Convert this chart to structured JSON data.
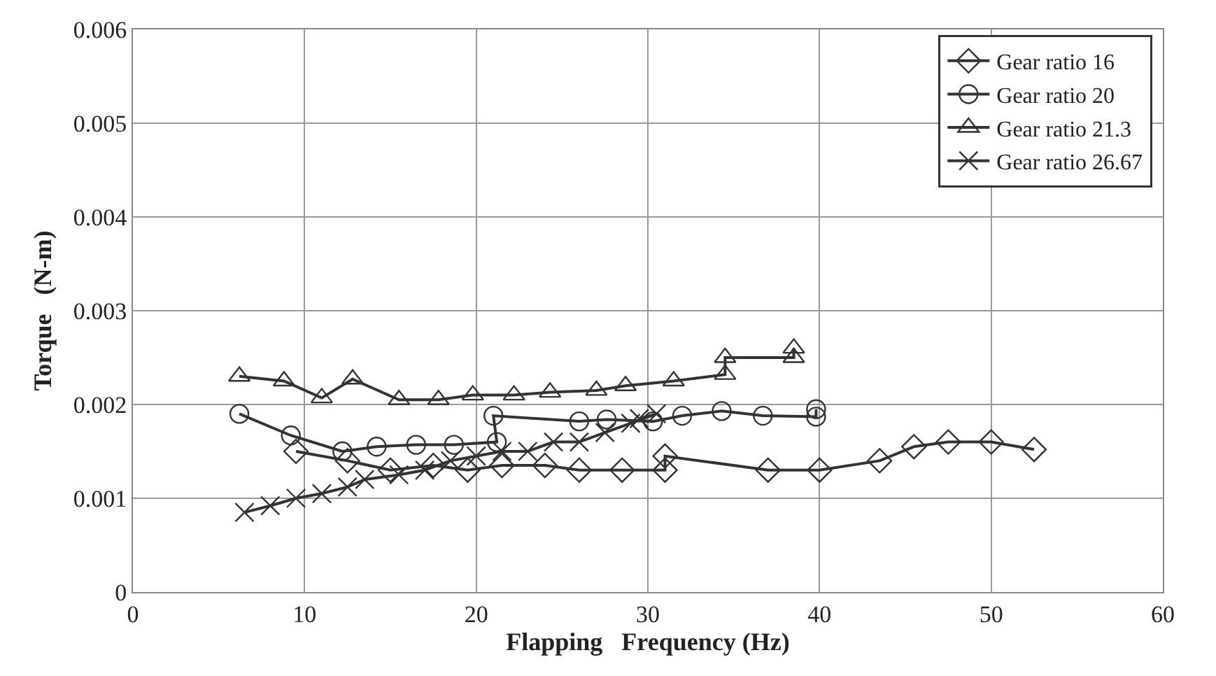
{
  "chart_data": {
    "type": "line",
    "xlabel": "Flapping   Frequency (Hz)",
    "ylabel": "Torque   (N-m)",
    "xlim": [
      0,
      60
    ],
    "xticks": [
      0,
      10,
      20,
      30,
      40,
      50,
      60
    ],
    "ylim": [
      0,
      0.006
    ],
    "yticks": [
      0,
      0.001,
      0.002,
      0.003,
      0.004,
      0.005,
      0.006
    ],
    "grid": true,
    "legend": "top right",
    "line_style": "solid",
    "series": [
      {
        "name": "Gear ratio 16",
        "color": "#333333",
        "marker": "diamond",
        "x": [
          9.5,
          12.5,
          15,
          17.5,
          19.5,
          21.5,
          24,
          26,
          28.5,
          31,
          31,
          37,
          40,
          43.5,
          45.5,
          47.5,
          50,
          52.5
        ],
        "values": [
          0.0015,
          0.0014,
          0.0013,
          0.00135,
          0.0013,
          0.00135,
          0.00135,
          0.0013,
          0.0013,
          0.0013,
          0.00145,
          0.0013,
          0.0013,
          0.0014,
          0.00155,
          0.0016,
          0.0016,
          0.00152
        ]
      },
      {
        "name": "Gear ratio 20",
        "color": "#333333",
        "marker": "circle",
        "x": [
          6.2,
          9.2,
          12.2,
          14.2,
          16.5,
          18.7,
          21.2,
          21,
          26,
          27.6,
          30.3,
          32,
          34.3,
          36.7,
          39.8,
          39.8
        ],
        "values": [
          0.0019,
          0.00167,
          0.0015,
          0.00155,
          0.00157,
          0.00157,
          0.0016,
          0.00188,
          0.00182,
          0.00184,
          0.00182,
          0.00188,
          0.00193,
          0.00188,
          0.00187,
          0.00195
        ]
      },
      {
        "name": "Gear ratio 21.3",
        "color": "#333333",
        "marker": "triangle",
        "x": [
          6.2,
          8.8,
          11,
          12.8,
          15.5,
          17.8,
          19.8,
          22.2,
          24.3,
          27,
          28.7,
          31.5,
          34.5,
          34.5,
          38.5,
          38.5
        ],
        "values": [
          0.0023,
          0.00225,
          0.00207,
          0.00227,
          0.00205,
          0.00205,
          0.0021,
          0.0021,
          0.00213,
          0.00215,
          0.0022,
          0.00225,
          0.00232,
          0.0025,
          0.0025,
          0.0026
        ]
      },
      {
        "name": "Gear ratio 26.67",
        "color": "#333333",
        "marker": "cross",
        "x": [
          6.5,
          8,
          9.5,
          11,
          12.5,
          13.5,
          15.5,
          17,
          18.5,
          20,
          21.5,
          23,
          24.5,
          26,
          27.5,
          29,
          30.5,
          29.5
        ],
        "values": [
          0.00085,
          0.00092,
          0.001,
          0.00105,
          0.00112,
          0.0012,
          0.00125,
          0.0013,
          0.0014,
          0.00145,
          0.0015,
          0.0015,
          0.0016,
          0.0016,
          0.0017,
          0.0018,
          0.0019,
          0.00185
        ]
      }
    ]
  }
}
